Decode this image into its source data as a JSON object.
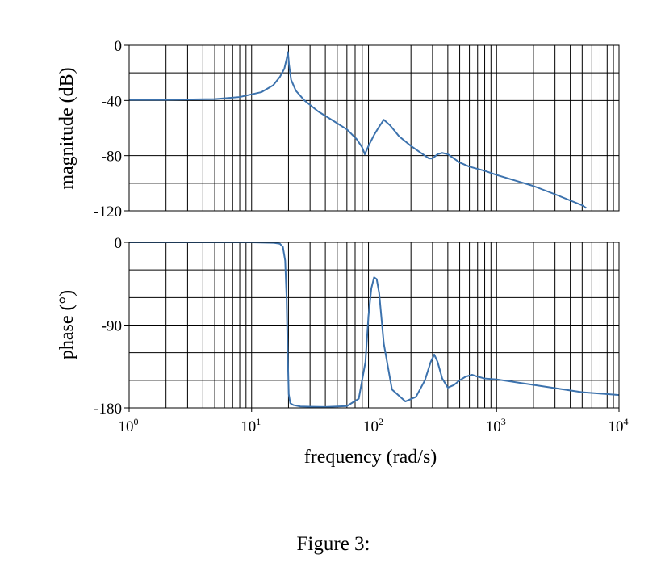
{
  "chart_data": [
    {
      "type": "line",
      "panel": "magnitude",
      "xscale": "log",
      "xlim": [
        1,
        10000
      ],
      "ylim": [
        -120,
        0
      ],
      "ylabel": "magnitude (dB)",
      "yticks": [
        0,
        -40,
        -80,
        -120
      ],
      "ytick_labels": [
        "0",
        "-40",
        "-80",
        "-120"
      ],
      "grid": true,
      "line_color": "#3c72ad",
      "series": [
        {
          "name": "magnitude",
          "x": [
            1,
            2,
            5,
            8,
            12,
            15,
            17,
            18.5,
            19.3,
            19.8,
            20.2,
            21,
            23,
            27,
            35,
            45,
            60,
            72,
            80,
            84,
            90,
            100,
            110,
            120,
            135,
            160,
            200,
            250,
            280,
            300,
            330,
            360,
            400,
            500,
            600,
            800,
            1000,
            2000,
            3000,
            5000,
            5400
          ],
          "y": [
            -39.5,
            -39.5,
            -39,
            -37.5,
            -34,
            -29,
            -23,
            -17,
            -10,
            -5,
            -14,
            -25,
            -33,
            -40,
            -48,
            -54,
            -61,
            -68,
            -74,
            -79,
            -73,
            -65,
            -59,
            -54,
            -58,
            -66,
            -73,
            -79,
            -82,
            -82,
            -79,
            -78,
            -79,
            -85,
            -88,
            -91,
            -94,
            -102,
            -108,
            -116,
            -118
          ]
        }
      ]
    },
    {
      "type": "line",
      "panel": "phase",
      "xscale": "log",
      "xlim": [
        1,
        10000
      ],
      "ylim": [
        -180,
        0
      ],
      "ylabel": "phase (°)",
      "xlabel": "frequency (rad/s)",
      "yticks": [
        0,
        -90,
        -180
      ],
      "ytick_labels": [
        "0",
        "-90",
        "-180"
      ],
      "xticks": [
        1,
        10,
        100,
        1000,
        10000
      ],
      "xtick_labels": [
        [
          "10",
          "0"
        ],
        [
          "10",
          "1"
        ],
        [
          "10",
          "2"
        ],
        [
          "10",
          "3"
        ],
        [
          "10",
          "4"
        ]
      ],
      "grid": true,
      "line_color": "#3c72ad",
      "series": [
        {
          "name": "phase",
          "x": [
            1,
            5,
            10,
            15,
            17,
            18,
            18.8,
            19.3,
            19.7,
            20.1,
            20.7,
            22,
            25,
            40,
            60,
            75,
            85,
            90,
            95,
            100,
            105,
            110,
            120,
            140,
            180,
            220,
            260,
            290,
            310,
            330,
            360,
            400,
            450,
            500,
            560,
            630,
            700,
            800,
            1000,
            2000,
            5000,
            10000
          ],
          "y": [
            0,
            0,
            0,
            -0.5,
            -1.5,
            -5,
            -20,
            -60,
            -120,
            -165,
            -175,
            -177,
            -178.5,
            -179,
            -178,
            -170,
            -130,
            -80,
            -50,
            -38,
            -40,
            -55,
            -110,
            -160,
            -173,
            -168,
            -150,
            -130,
            -122,
            -130,
            -148,
            -158,
            -155,
            -150,
            -146,
            -144,
            -146,
            -148,
            -149,
            -155,
            -163,
            -166
          ]
        }
      ]
    }
  ],
  "figure": {
    "caption": "Figure 3:"
  }
}
